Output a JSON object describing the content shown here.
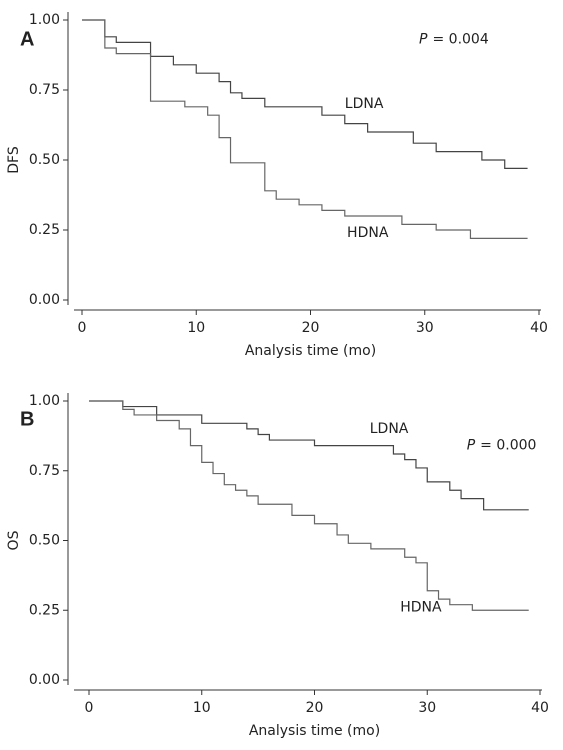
{
  "chart_data": [
    {
      "type": "line",
      "step": "post",
      "panel": "A",
      "xlabel": "Analysis time (mo)",
      "ylabel": "DFS",
      "p_symbol": "P",
      "p_text": "= 0.004",
      "x": [
        0,
        2,
        3,
        6,
        8,
        9,
        10,
        11,
        12,
        13,
        14,
        16,
        17,
        19,
        21,
        23,
        25,
        28,
        29,
        31,
        34,
        35,
        37,
        39
      ],
      "series": [
        {
          "name": "LDNA",
          "color": "#444444",
          "values": [
            1,
            0.94,
            0.92,
            0.87,
            0.84,
            0.84,
            0.81,
            0.81,
            0.78,
            0.74,
            0.72,
            0.69,
            0.69,
            0.69,
            0.66,
            0.63,
            0.6,
            0.6,
            0.56,
            0.53,
            0.53,
            0.5,
            0.47,
            0.47
          ]
        },
        {
          "name": "HDNA",
          "color": "#666666",
          "values": [
            1,
            0.9,
            0.88,
            0.71,
            0.71,
            0.69,
            0.69,
            0.66,
            0.58,
            0.49,
            0.49,
            0.39,
            0.36,
            0.34,
            0.32,
            0.3,
            0.3,
            0.27,
            0.27,
            0.25,
            0.22,
            0.22,
            0.22,
            0.22
          ]
        }
      ],
      "xlim": [
        0,
        40
      ],
      "xticks": [
        0,
        10,
        20,
        30,
        40
      ],
      "ylim": [
        0,
        1
      ],
      "yticks": [
        {
          "value": 0,
          "label": "0.00"
        },
        {
          "value": 0.25,
          "label": "0.25"
        },
        {
          "value": 0.5,
          "label": "0.50"
        },
        {
          "value": 0.75,
          "label": "0.75"
        },
        {
          "value": 1,
          "label": "1.00"
        }
      ]
    },
    {
      "type": "line",
      "step": "post",
      "panel": "B",
      "xlabel": "Analysis time (mo)",
      "ylabel": "OS",
      "p_symbol": "P",
      "p_text": "= 0.000",
      "x": [
        0,
        3,
        4,
        6,
        8,
        9,
        10,
        11,
        12,
        13,
        14,
        15,
        16,
        18,
        20,
        22,
        23,
        25,
        27,
        28,
        29,
        30,
        31,
        32,
        33,
        34,
        35,
        39
      ],
      "series": [
        {
          "name": "LDNA",
          "color": "#444444",
          "values": [
            1,
            0.98,
            0.98,
            0.95,
            0.95,
            0.95,
            0.92,
            0.92,
            0.92,
            0.92,
            0.9,
            0.88,
            0.86,
            0.86,
            0.84,
            0.84,
            0.84,
            0.84,
            0.81,
            0.79,
            0.76,
            0.71,
            0.71,
            0.68,
            0.65,
            0.65,
            0.61,
            0.61
          ]
        },
        {
          "name": "HDNA",
          "color": "#666666",
          "values": [
            1,
            0.97,
            0.95,
            0.93,
            0.9,
            0.84,
            0.78,
            0.74,
            0.7,
            0.68,
            0.66,
            0.63,
            0.63,
            0.59,
            0.56,
            0.52,
            0.49,
            0.47,
            0.47,
            0.44,
            0.42,
            0.32,
            0.29,
            0.27,
            0.27,
            0.25,
            0.25,
            0.25
          ]
        }
      ],
      "xlim": [
        0,
        40
      ],
      "xticks": [
        0,
        10,
        20,
        30,
        40
      ],
      "ylim": [
        0,
        1
      ],
      "yticks": [
        {
          "value": 0,
          "label": "0.00"
        },
        {
          "value": 0.25,
          "label": "0.25"
        },
        {
          "value": 0.5,
          "label": "0.50"
        },
        {
          "value": 0.75,
          "label": "0.75"
        },
        {
          "value": 1,
          "label": "1.00"
        }
      ]
    }
  ]
}
